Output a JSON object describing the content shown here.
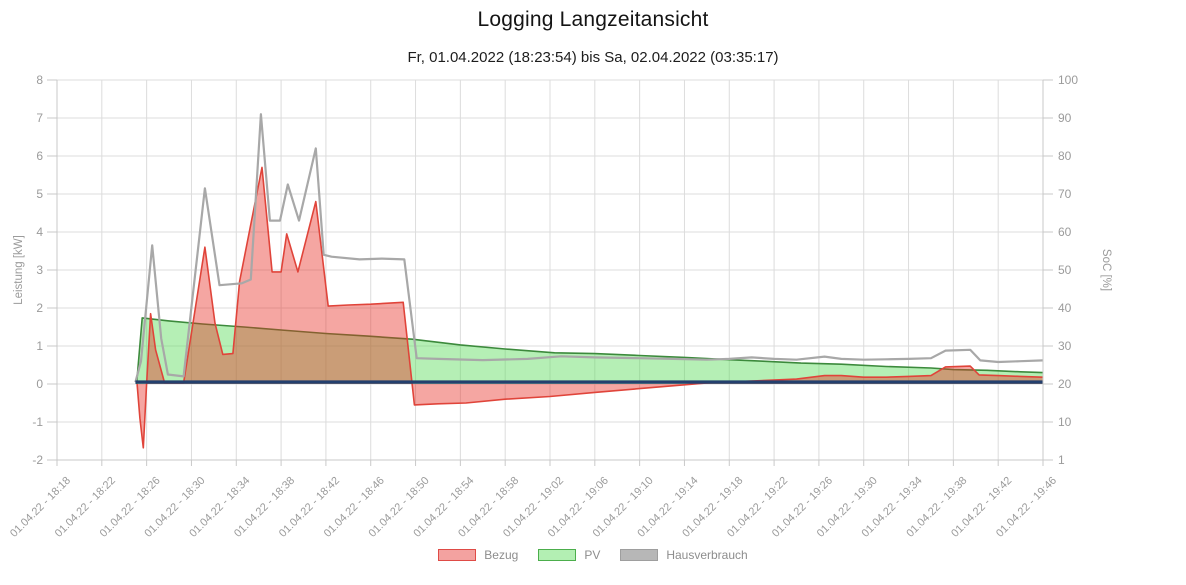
{
  "title": "Logging Langzeitansicht",
  "subtitle": "Fr, 01.04.2022 (18:23:54) bis Sa, 02.04.2022 (03:35:17)",
  "colors": {
    "grid": "#dcdcdc",
    "axis_border": "#c9c9c9",
    "tick_text": "#9b9b9b",
    "axis_title_text": "#9b9b9b",
    "bezug_line": "#e0443a",
    "bezug_fill": "rgba(231,44,33,0.42)",
    "pv_line": "#3c8a3c",
    "pv_fill": "rgba(92,220,92,0.45)",
    "hausverbrauch_line": "#a8a8a8",
    "soc_line": "#24406e"
  },
  "chart_data": {
    "type": "area",
    "title": "Logging Langzeitansicht",
    "subtitle": "Fr, 01.04.2022 (18:23:54) bis Sa, 02.04.2022 (03:35:17)",
    "x_unit": "minutes after 18:18 on 01.04.22",
    "grid": true,
    "legend_position": "bottom",
    "x_axis": {
      "tick_interval_minutes": 4,
      "tick_labels": [
        "01.04.22 - 18:18",
        "01.04.22 - 18:22",
        "01.04.22 - 18:26",
        "01.04.22 - 18:30",
        "01.04.22 - 18:34",
        "01.04.22 - 18:38",
        "01.04.22 - 18:42",
        "01.04.22 - 18:46",
        "01.04.22 - 18:50",
        "01.04.22 - 18:54",
        "01.04.22 - 18:58",
        "01.04.22 - 19:02",
        "01.04.22 - 19:06",
        "01.04.22 - 19:10",
        "01.04.22 - 19:14",
        "01.04.22 - 19:18",
        "01.04.22 - 19:22",
        "01.04.22 - 19:26",
        "01.04.22 - 19:30",
        "01.04.22 - 19:34",
        "01.04.22 - 19:38",
        "01.04.22 - 19:42",
        "01.04.22 - 19:46"
      ],
      "tick_minutes": [
        0,
        4,
        8,
        12,
        16,
        20,
        24,
        28,
        32,
        36,
        40,
        44,
        48,
        52,
        56,
        60,
        64,
        68,
        72,
        76,
        80,
        84,
        88
      ]
    },
    "y_left": {
      "label": "Leistung [kW]",
      "ticks": [
        8,
        7,
        6,
        5,
        4,
        3,
        2,
        1,
        0,
        -1,
        -2
      ],
      "range": [
        -2,
        8
      ]
    },
    "y_right": {
      "label": "SoC [%]",
      "ticks": [
        100,
        90,
        80,
        70,
        60,
        50,
        40,
        30,
        20,
        10,
        1
      ],
      "range": [
        1,
        100
      ]
    },
    "legend": [
      {
        "label": "Bezug",
        "swatch_fill": "#f3a2a0",
        "swatch_border": "#df4b46"
      },
      {
        "label": "PV",
        "swatch_fill": "#b3efb3",
        "swatch_border": "#4cae4c"
      },
      {
        "label": "Hausverbrauch",
        "swatch_fill": "#b7b7b7",
        "swatch_border": "#9e9e9e"
      }
    ],
    "series": [
      {
        "name": "PV",
        "kind": "area",
        "axis": "left",
        "in_legend": true,
        "points": [
          [
            7.1,
            0
          ],
          [
            7.6,
            1.74
          ],
          [
            10,
            1.66
          ],
          [
            13,
            1.58
          ],
          [
            16.7,
            1.5
          ],
          [
            20,
            1.42
          ],
          [
            24,
            1.33
          ],
          [
            27.7,
            1.26
          ],
          [
            31.7,
            1.18
          ],
          [
            36,
            1.03
          ],
          [
            40,
            0.92
          ],
          [
            44.4,
            0.82
          ],
          [
            48,
            0.8
          ],
          [
            52,
            0.75
          ],
          [
            56,
            0.7
          ],
          [
            60,
            0.64
          ],
          [
            63,
            0.6
          ],
          [
            66.4,
            0.55
          ],
          [
            70,
            0.52
          ],
          [
            74,
            0.46
          ],
          [
            78,
            0.42
          ],
          [
            80,
            0.38
          ],
          [
            83,
            0.36
          ],
          [
            86,
            0.32
          ],
          [
            88,
            0.3
          ]
        ]
      },
      {
        "name": "Bezug",
        "kind": "area",
        "axis": "left",
        "in_legend": true,
        "points": [
          [
            7.15,
            0
          ],
          [
            7.4,
            -0.9
          ],
          [
            7.7,
            -1.68
          ],
          [
            8,
            0
          ],
          [
            8.35,
            1.85
          ],
          [
            8.8,
            0.9
          ],
          [
            9.6,
            0.03
          ],
          [
            11.3,
            0.03
          ],
          [
            13.2,
            3.6
          ],
          [
            14.1,
            1.6
          ],
          [
            14.8,
            0.78
          ],
          [
            15.7,
            0.8
          ],
          [
            16.3,
            2.7
          ],
          [
            18.3,
            5.7
          ],
          [
            19.2,
            2.95
          ],
          [
            20,
            2.95
          ],
          [
            20.5,
            3.95
          ],
          [
            21.5,
            2.95
          ],
          [
            23.1,
            4.8
          ],
          [
            24.2,
            2.05
          ],
          [
            26,
            2.08
          ],
          [
            28,
            2.1
          ],
          [
            30.9,
            2.15
          ],
          [
            31.9,
            -0.55
          ],
          [
            34,
            -0.52
          ],
          [
            36.5,
            -0.5
          ],
          [
            40,
            -0.4
          ],
          [
            44,
            -0.33
          ],
          [
            48,
            -0.22
          ],
          [
            52,
            -0.12
          ],
          [
            56,
            -0.02
          ],
          [
            58,
            0.03
          ],
          [
            62,
            0.08
          ],
          [
            66,
            0.13
          ],
          [
            68.5,
            0.22
          ],
          [
            70,
            0.22
          ],
          [
            72,
            0.18
          ],
          [
            74,
            0.18
          ],
          [
            76,
            0.2
          ],
          [
            78,
            0.22
          ],
          [
            79.3,
            0.45
          ],
          [
            81.5,
            0.47
          ],
          [
            82.3,
            0.24
          ],
          [
            84,
            0.22
          ],
          [
            86,
            0.2
          ],
          [
            88,
            0.18
          ]
        ]
      },
      {
        "name": "Hausverbrauch",
        "kind": "line",
        "axis": "left",
        "in_legend": true,
        "points": [
          [
            7,
            0.05
          ],
          [
            7.5,
            0.6
          ],
          [
            8.5,
            3.65
          ],
          [
            9.3,
            1.2
          ],
          [
            9.9,
            0.25
          ],
          [
            11.3,
            0.2
          ],
          [
            13.2,
            5.15
          ],
          [
            14.5,
            2.6
          ],
          [
            16.5,
            2.65
          ],
          [
            17.3,
            2.75
          ],
          [
            18.2,
            7.1
          ],
          [
            19,
            4.3
          ],
          [
            19.9,
            4.3
          ],
          [
            20.6,
            5.25
          ],
          [
            21.6,
            4.3
          ],
          [
            23.1,
            6.2
          ],
          [
            23.8,
            3.4
          ],
          [
            24.5,
            3.35
          ],
          [
            27,
            3.28
          ],
          [
            29,
            3.3
          ],
          [
            31,
            3.28
          ],
          [
            32.1,
            0.68
          ],
          [
            34,
            0.66
          ],
          [
            38,
            0.63
          ],
          [
            42,
            0.66
          ],
          [
            45,
            0.73
          ],
          [
            48,
            0.7
          ],
          [
            52,
            0.68
          ],
          [
            55,
            0.66
          ],
          [
            58,
            0.64
          ],
          [
            60,
            0.66
          ],
          [
            62,
            0.7
          ],
          [
            64,
            0.66
          ],
          [
            66,
            0.64
          ],
          [
            68.5,
            0.72
          ],
          [
            70,
            0.66
          ],
          [
            72,
            0.64
          ],
          [
            74,
            0.65
          ],
          [
            76,
            0.66
          ],
          [
            78,
            0.68
          ],
          [
            79.3,
            0.88
          ],
          [
            81.5,
            0.9
          ],
          [
            82.4,
            0.62
          ],
          [
            84,
            0.58
          ],
          [
            86,
            0.6
          ],
          [
            88,
            0.62
          ]
        ]
      },
      {
        "name": "SoC",
        "kind": "line",
        "axis": "right",
        "in_legend": false,
        "points": [
          [
            7,
            20.5
          ],
          [
            88,
            20.5
          ]
        ]
      }
    ]
  }
}
